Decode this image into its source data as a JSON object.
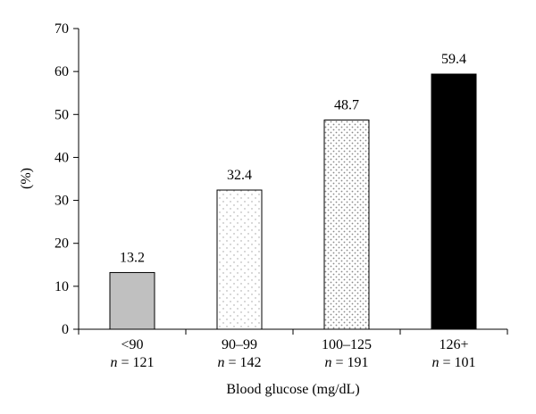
{
  "chart_data": {
    "type": "bar",
    "categories": [
      "<90",
      "90–99",
      "100–125",
      "126+"
    ],
    "category_n": [
      "121",
      "142",
      "191",
      "101"
    ],
    "n_symbol": "n",
    "n_equals": " = ",
    "values": [
      13.2,
      32.4,
      48.7,
      59.4
    ],
    "data_labels": [
      "13.2",
      "32.4",
      "48.7",
      "59.4"
    ],
    "bar_fills": [
      "gray",
      "light-dots",
      "dense-dots",
      "black"
    ],
    "title": "",
    "xlabel": "Blood glucose (mg/dL)",
    "ylabel": "(%)",
    "ylim": [
      0,
      70
    ],
    "yticks": [
      0,
      10,
      20,
      30,
      40,
      50,
      60,
      70
    ],
    "grid": false,
    "legend": "none"
  },
  "colors": {
    "gray": "#c0c0c0",
    "black": "#000000",
    "dot": "#9a9a9a"
  }
}
